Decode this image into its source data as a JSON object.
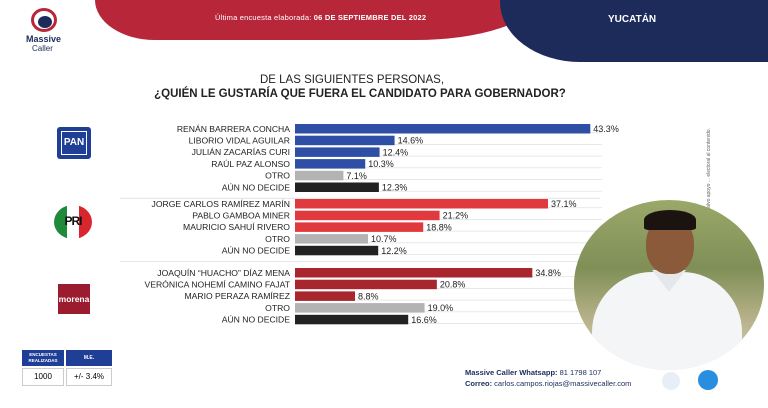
{
  "header": {
    "date_label": "Última encuesta elaborada: ",
    "date_value": "06 DE SEPTIEMBRE DEL 2022",
    "region": "YUCATÁN",
    "logo_line1": "Massive",
    "logo_line2": "Caller"
  },
  "question": {
    "line1": "DE LAS SIGUIENTES PERSONAS,",
    "line2": "¿QUIÉN LE GUSTARÍA QUE FUERA EL CANDIDATO PARA GOBERNADOR?"
  },
  "parties": {
    "pan": "PAN",
    "pri": "PRI",
    "morena": "morena"
  },
  "side_note": "INE... 9A DEC V, 2022 ... autor, salvo apoyo ... electoral al contenido.",
  "chart_data": {
    "type": "bar",
    "orientation": "horizontal",
    "title": "¿QUIÉN LE GUSTARÍA QUE FUERA EL CANDIDATO PARA GOBERNADOR?",
    "unit": "%",
    "xlim": [
      0,
      45
    ],
    "groups": [
      {
        "party": "PAN",
        "color": "#2f4fa6",
        "categories": [
          "RENÁN BARRERA CONCHA",
          "LIBORIO  VIDAL AGUILAR",
          "JULIÁN ZACARÍAS CURI",
          "RAÚL PAZ ALONSO",
          "OTRO",
          "AÚN NO DECIDE"
        ],
        "values": [
          43.3,
          14.6,
          12.4,
          10.3,
          7.1,
          12.3
        ],
        "labels": [
          "43.3%",
          "14.6%",
          "12.4%",
          "10.3%",
          "7.1%",
          "12.3%"
        ]
      },
      {
        "party": "PRI",
        "color": "#e03a3e",
        "categories": [
          "JORGE CARLOS RAMÍREZ MARÍN",
          "PABLO GAMBOA MINER",
          "MAURICIO SAHUÍ RIVERO",
          "OTRO",
          "AÚN NO DECIDE"
        ],
        "values": [
          37.1,
          21.2,
          18.8,
          10.7,
          12.2
        ],
        "labels": [
          "37.1%",
          "21.2%",
          "18.8%",
          "10.7%",
          "12.2%"
        ]
      },
      {
        "party": "morena",
        "color": "#a8262e",
        "categories": [
          "JOAQUÍN “HUACHO” DÍAZ MENA",
          "VERÓNICA NOHEMÍ CAMINO FAJAT",
          "MARIO PERAZA RAMÍREZ",
          "OTRO",
          "AÚN NO DECIDE"
        ],
        "values": [
          34.8,
          20.8,
          8.8,
          19.0,
          16.6
        ],
        "labels": [
          "34.8%",
          "20.8%",
          "8.8%",
          "19.0%",
          "16.6%"
        ]
      }
    ],
    "other_color": "#b3b3b3",
    "undecided_color": "#222222"
  },
  "stats": {
    "h1": "ENCUESTAS REALIZADAS",
    "h2": "M.E.",
    "v1": "1000",
    "v2": "+/- 3.4%"
  },
  "footer": {
    "line1_label": "Massive Caller Whatsapp: ",
    "line1_value": "81 1798 107",
    "line2_label": "Correo: ",
    "line2_value": "carlos.campos.riojas@massivecaller.com"
  }
}
